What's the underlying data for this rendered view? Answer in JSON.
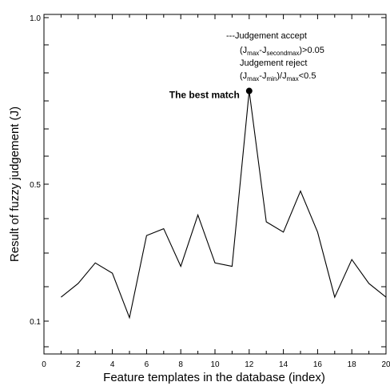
{
  "chart_data": {
    "type": "line",
    "xlabel": "Feature templates in the database (index)",
    "ylabel": "Result of fuzzy judgement (J)",
    "xlim": [
      0,
      20
    ],
    "ylim": [
      0,
      1.0
    ],
    "x_ticks": [
      0,
      2,
      4,
      6,
      8,
      10,
      12,
      14,
      16,
      18,
      20
    ],
    "x_tick_labels": [
      "0",
      "2",
      "4",
      "6",
      "8",
      "10",
      "12",
      "14",
      "16",
      "18",
      "20"
    ],
    "y_ticks": [
      0.1,
      0.5,
      1.0
    ],
    "y_tick_labels": [
      "0.1",
      "0.5",
      "1.0"
    ],
    "grid": false,
    "x": [
      1,
      2,
      3,
      4,
      5,
      6,
      7,
      8,
      9,
      10,
      11,
      12,
      13,
      14,
      15,
      16,
      17,
      18,
      19,
      20
    ],
    "values": [
      0.17,
      0.21,
      0.27,
      0.24,
      0.11,
      0.35,
      0.37,
      0.26,
      0.41,
      0.27,
      0.26,
      0.78,
      0.39,
      0.36,
      0.48,
      0.36,
      0.17,
      0.28,
      0.21,
      0.17
    ],
    "highlight": {
      "x": 12,
      "y": 0.78,
      "label": "The best match"
    },
    "annotations": {
      "accept_title": "---Judgement accept",
      "accept_formula": {
        "open": "(J",
        "s1": "max",
        "mid": "-J",
        "s2": "secondmax",
        "close": ")>0.05"
      },
      "reject_title": "Judgement reject",
      "reject_formula": {
        "open": "(J",
        "s1": "max",
        "mid": "-J",
        "s2": "min",
        "close": ")/J",
        "s3": "max",
        "end": "<0.5"
      }
    }
  }
}
